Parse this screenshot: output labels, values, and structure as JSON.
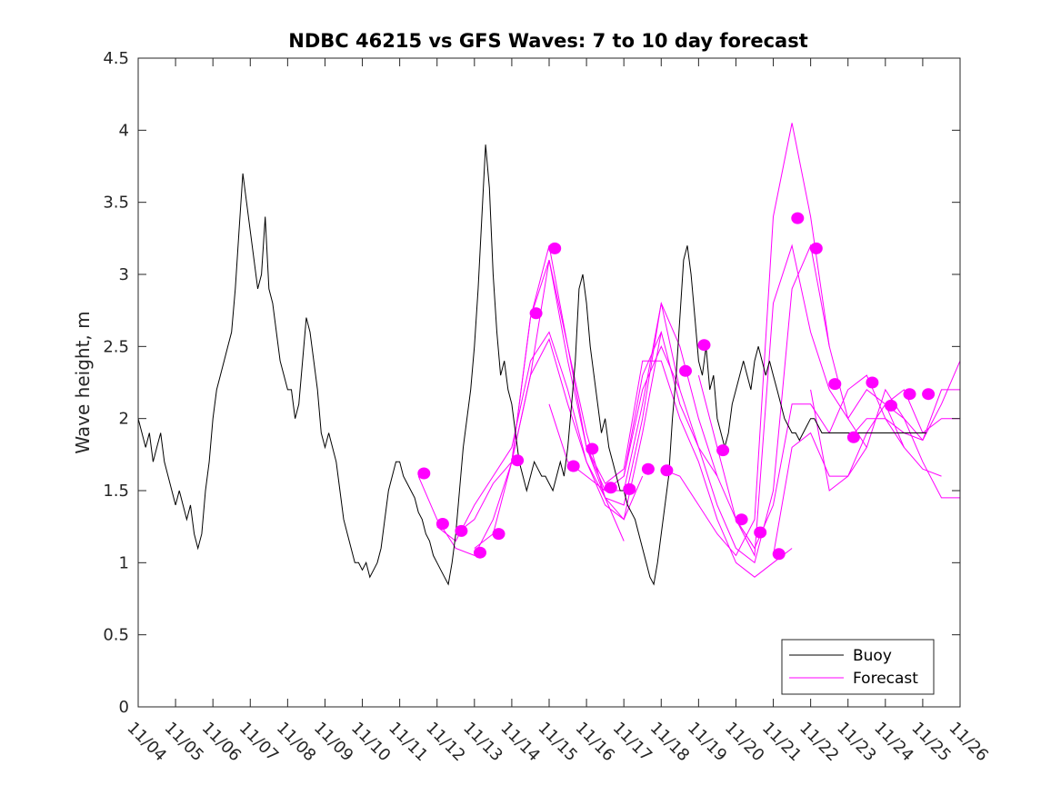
{
  "chart_data": {
    "type": "line",
    "title": "NDBC 46215 vs GFS Waves: 7 to 10 day forecast",
    "xlabel": "",
    "ylabel": "Wave height, m",
    "xlim": [
      0,
      22
    ],
    "ylim": [
      0,
      4.5
    ],
    "grid": false,
    "legend_position": "bottom-right",
    "x_tick_labels": [
      "11/04",
      "11/05",
      "11/06",
      "11/07",
      "11/08",
      "11/09",
      "11/10",
      "11/11",
      "11/12",
      "11/13",
      "11/14",
      "11/15",
      "11/16",
      "11/17",
      "11/18",
      "11/19",
      "11/20",
      "11/21",
      "11/22",
      "11/23",
      "11/24",
      "11/25",
      "11/26"
    ],
    "y_ticks": [
      0,
      0.5,
      1,
      1.5,
      2,
      2.5,
      3,
      3.5,
      4,
      4.5
    ],
    "y_tick_labels": [
      "0",
      "0.5",
      "1",
      "1.5",
      "2",
      "2.5",
      "3",
      "3.5",
      "4",
      "4.5"
    ],
    "legend": [
      "Buoy",
      "Forecast"
    ],
    "colors": {
      "buoy": "#000000",
      "forecast": "#ff00ff"
    },
    "buoy": {
      "name": "Buoy",
      "x": [
        0,
        0.1,
        0.2,
        0.3,
        0.4,
        0.5,
        0.6,
        0.7,
        0.8,
        0.9,
        1.0,
        1.1,
        1.2,
        1.3,
        1.4,
        1.5,
        1.6,
        1.7,
        1.8,
        1.9,
        2.0,
        2.1,
        2.2,
        2.3,
        2.4,
        2.5,
        2.6,
        2.7,
        2.8,
        2.9,
        3.0,
        3.1,
        3.2,
        3.3,
        3.4,
        3.5,
        3.6,
        3.7,
        3.8,
        3.9,
        4.0,
        4.1,
        4.2,
        4.3,
        4.4,
        4.5,
        4.6,
        4.7,
        4.8,
        4.9,
        5.0,
        5.1,
        5.2,
        5.3,
        5.4,
        5.5,
        5.6,
        5.7,
        5.8,
        5.9,
        6.0,
        6.1,
        6.2,
        6.3,
        6.4,
        6.5,
        6.6,
        6.7,
        6.8,
        6.9,
        7.0,
        7.1,
        7.2,
        7.3,
        7.4,
        7.5,
        7.6,
        7.7,
        7.8,
        7.9,
        8.0,
        8.1,
        8.2,
        8.3,
        8.4,
        8.5,
        8.6,
        8.7,
        8.8,
        8.9,
        9.0,
        9.1,
        9.2,
        9.3,
        9.4,
        9.5,
        9.6,
        9.7,
        9.8,
        9.9,
        10.0,
        10.1,
        10.2,
        10.3,
        10.4,
        10.5,
        10.6,
        10.7,
        10.8,
        10.9,
        11.0,
        11.1,
        11.2,
        11.3,
        11.4,
        11.5,
        11.6,
        11.7,
        11.8,
        11.9,
        12.0,
        12.1,
        12.2,
        12.3,
        12.4,
        12.5,
        12.6,
        12.7,
        12.8,
        12.9,
        13.0,
        13.1,
        13.2,
        13.3,
        13.4,
        13.5,
        13.6,
        13.7,
        13.8,
        13.9,
        14.0,
        14.1,
        14.2,
        14.3,
        14.4,
        14.5,
        14.6,
        14.7,
        14.8,
        14.9,
        15.0,
        15.1,
        15.2,
        15.3,
        15.4,
        15.5,
        15.6,
        15.7,
        15.8,
        15.9,
        16.0,
        16.1,
        16.2,
        16.3,
        16.4,
        16.5,
        16.6,
        16.7,
        16.8,
        16.9,
        17.0,
        17.1,
        17.2,
        17.3,
        17.4,
        17.5,
        17.6,
        17.7,
        17.8,
        17.9,
        18.0,
        18.1,
        18.2,
        18.3,
        18.4,
        18.5,
        18.6,
        18.7,
        18.8,
        18.9,
        19.0,
        19.1,
        19.2,
        19.3,
        19.4,
        19.5,
        19.6,
        19.7,
        19.8,
        19.9,
        20.0,
        20.1,
        20.2,
        20.3,
        20.4,
        20.5,
        20.6,
        20.7,
        20.8,
        20.9,
        21.0,
        21.1
      ],
      "y": [
        2.0,
        1.9,
        1.8,
        1.9,
        1.7,
        1.8,
        1.9,
        1.7,
        1.6,
        1.5,
        1.4,
        1.5,
        1.4,
        1.3,
        1.4,
        1.2,
        1.1,
        1.2,
        1.5,
        1.7,
        2.0,
        2.2,
        2.3,
        2.4,
        2.5,
        2.6,
        2.9,
        3.3,
        3.7,
        3.5,
        3.3,
        3.1,
        2.9,
        3.0,
        3.4,
        2.9,
        2.8,
        2.6,
        2.4,
        2.3,
        2.2,
        2.2,
        2.0,
        2.1,
        2.4,
        2.7,
        2.6,
        2.4,
        2.2,
        1.9,
        1.8,
        1.9,
        1.8,
        1.7,
        1.5,
        1.3,
        1.2,
        1.1,
        1.0,
        1.0,
        0.95,
        1.0,
        0.9,
        0.95,
        1.0,
        1.1,
        1.3,
        1.5,
        1.6,
        1.7,
        1.7,
        1.6,
        1.55,
        1.5,
        1.45,
        1.35,
        1.3,
        1.2,
        1.15,
        1.05,
        1.0,
        0.95,
        0.9,
        0.85,
        1.0,
        1.2,
        1.5,
        1.8,
        2.0,
        2.2,
        2.5,
        2.9,
        3.4,
        3.9,
        3.6,
        3.0,
        2.6,
        2.3,
        2.4,
        2.2,
        2.1,
        1.9,
        1.7,
        1.6,
        1.5,
        1.6,
        1.7,
        1.65,
        1.6,
        1.6,
        1.55,
        1.5,
        1.6,
        1.7,
        1.6,
        1.8,
        2.1,
        2.4,
        2.9,
        3.0,
        2.8,
        2.5,
        2.3,
        2.1,
        1.9,
        2.0,
        1.8,
        1.7,
        1.6,
        1.5,
        1.5,
        1.4,
        1.35,
        1.3,
        1.2,
        1.1,
        1.0,
        0.9,
        0.85,
        1.0,
        1.2,
        1.4,
        1.6,
        2.0,
        2.3,
        2.7,
        3.1,
        3.2,
        3.0,
        2.7,
        2.4,
        2.3,
        2.5,
        2.2,
        2.3,
        2.0,
        1.9,
        1.8,
        1.9,
        2.1,
        2.2,
        2.3,
        2.4,
        2.3,
        2.2,
        2.4,
        2.5,
        2.4,
        2.3,
        2.4,
        2.3,
        2.2,
        2.1,
        2.0,
        1.95,
        1.9,
        1.9,
        1.85,
        1.9,
        1.95,
        2.0,
        2.0,
        1.95,
        1.9,
        1.9,
        1.9,
        1.9,
        1.9,
        1.9,
        1.9,
        1.9,
        1.9,
        1.9,
        1.9,
        1.9,
        1.9,
        1.9,
        1.9,
        1.9,
        1.9,
        1.9,
        1.9,
        1.9,
        1.9,
        1.9,
        1.9,
        1.9,
        1.9,
        1.9,
        1.9,
        1.9,
        1.9
      ]
    },
    "forecast_series": [
      {
        "name": "Forecast",
        "x": [
          7.5,
          8.0,
          8.5,
          9.0,
          9.5,
          10.0,
          10.5,
          11.0,
          11.5,
          12.0,
          12.5,
          13.0
        ],
        "y": [
          1.6,
          1.3,
          1.1,
          1.05,
          1.3,
          1.7,
          2.3,
          2.55,
          2.1,
          1.7,
          1.45,
          1.15
        ]
      },
      {
        "name": "Forecast",
        "x": [
          8.0,
          8.5,
          9.0,
          9.5,
          10.0,
          10.5,
          11.0,
          11.5,
          12.0,
          12.5,
          13.0,
          13.5
        ],
        "y": [
          1.25,
          1.15,
          1.4,
          1.6,
          1.8,
          2.4,
          2.6,
          2.2,
          1.7,
          1.4,
          1.3,
          1.6
        ]
      },
      {
        "name": "Forecast",
        "x": [
          8.5,
          9.0,
          9.5,
          10.0,
          10.5,
          11.0,
          11.5,
          12.0,
          12.5,
          13.0,
          13.5,
          14.0
        ],
        "y": [
          1.2,
          1.3,
          1.55,
          1.7,
          2.3,
          3.1,
          2.5,
          1.9,
          1.45,
          1.3,
          1.9,
          2.6
        ]
      },
      {
        "name": "Forecast",
        "x": [
          9.0,
          9.5,
          10.0,
          10.5,
          11.0,
          11.5,
          12.0,
          12.5,
          13.0,
          13.5,
          14.0,
          14.5
        ],
        "y": [
          1.1,
          1.2,
          1.7,
          2.7,
          3.2,
          2.5,
          1.8,
          1.45,
          1.4,
          2.0,
          2.8,
          2.2
        ]
      },
      {
        "name": "Forecast",
        "x": [
          10.0,
          10.5,
          11.0,
          11.5,
          12.0,
          12.5,
          13.0,
          13.5,
          14.0,
          14.5,
          15.0,
          15.5
        ],
        "y": [
          1.7,
          2.7,
          3.1,
          2.4,
          1.8,
          1.5,
          1.5,
          2.1,
          2.8,
          2.5,
          2.0,
          1.6
        ]
      },
      {
        "name": "Forecast",
        "x": [
          11.0,
          11.5,
          12.0,
          12.5,
          13.0,
          13.5,
          14.0,
          14.5,
          15.0,
          15.5,
          16.0,
          16.5
        ],
        "y": [
          2.1,
          1.7,
          1.6,
          1.5,
          1.6,
          2.3,
          2.6,
          2.1,
          1.8,
          1.6,
          1.3,
          1.1
        ]
      },
      {
        "name": "Forecast",
        "x": [
          12.0,
          12.5,
          13.0,
          13.5,
          14.0,
          14.5,
          15.0,
          15.5,
          16.0,
          16.5,
          17.0,
          17.5
        ],
        "y": [
          1.8,
          1.55,
          1.65,
          2.4,
          2.4,
          2.0,
          1.7,
          1.3,
          1.0,
          0.9,
          1.0,
          1.1
        ]
      },
      {
        "name": "Forecast",
        "x": [
          13.0,
          13.5,
          14.0,
          14.5,
          15.0,
          15.5,
          16.0,
          16.5,
          17.0,
          17.5,
          18.0,
          18.5
        ],
        "y": [
          1.6,
          2.2,
          2.5,
          2.2,
          1.8,
          1.4,
          1.1,
          1.0,
          1.5,
          2.9,
          3.2,
          2.5
        ]
      },
      {
        "name": "Forecast",
        "x": [
          14.0,
          14.5,
          15.0,
          15.5,
          16.0,
          16.5,
          17.0,
          17.5,
          18.0,
          18.5,
          19.0,
          19.5
        ],
        "y": [
          1.65,
          1.6,
          1.4,
          1.2,
          1.05,
          1.3,
          3.4,
          4.05,
          3.4,
          2.5,
          2.0,
          1.8
        ]
      },
      {
        "name": "Forecast",
        "x": [
          15.0,
          15.5,
          16.0,
          16.5,
          17.0,
          17.5,
          18.0,
          18.5,
          19.0,
          19.5,
          20.0,
          20.5
        ],
        "y": [
          2.3,
          1.8,
          1.3,
          1.05,
          2.8,
          3.2,
          2.6,
          2.2,
          2.0,
          2.2,
          2.1,
          1.8
        ]
      },
      {
        "name": "Forecast",
        "x": [
          16.0,
          16.5,
          17.0,
          17.5,
          18.0,
          18.5,
          19.0,
          19.5,
          20.0,
          20.5,
          21.0,
          21.5
        ],
        "y": [
          1.3,
          1.1,
          1.4,
          2.1,
          2.1,
          1.9,
          2.2,
          2.3,
          2.0,
          1.8,
          1.65,
          1.6
        ]
      },
      {
        "name": "Forecast",
        "x": [
          17.0,
          17.5,
          18.0,
          18.5,
          19.0,
          19.5,
          20.0,
          20.5,
          21.0,
          21.5,
          22.0
        ],
        "y": [
          1.05,
          1.8,
          1.9,
          1.6,
          1.6,
          1.9,
          2.1,
          2.0,
          1.85,
          2.1,
          2.4
        ]
      },
      {
        "name": "Forecast",
        "x": [
          18.0,
          18.5,
          19.0,
          19.5,
          20.0,
          20.5,
          21.0,
          21.5,
          22.0
        ],
        "y": [
          2.2,
          1.5,
          1.6,
          1.8,
          2.2,
          2.0,
          1.7,
          1.45,
          1.45
        ]
      },
      {
        "name": "Forecast",
        "x": [
          19.0,
          19.5,
          20.0,
          20.5,
          21.0,
          21.5,
          22.0
        ],
        "y": [
          1.85,
          2.0,
          2.0,
          1.9,
          1.85,
          2.2,
          2.2
        ]
      },
      {
        "name": "Forecast",
        "x": [
          20.0,
          20.5,
          21.0,
          21.5,
          22.0
        ],
        "y": [
          2.1,
          2.2,
          1.9,
          2.0,
          2.0
        ]
      }
    ],
    "forecast_markers": {
      "x": [
        7.65,
        8.15,
        8.65,
        9.15,
        9.65,
        10.15,
        10.65,
        11.15,
        11.65,
        12.15,
        12.65,
        13.15,
        13.65,
        14.15,
        14.65,
        15.15,
        15.65,
        16.15,
        16.65,
        17.15,
        17.65,
        18.15,
        18.65,
        19.15,
        19.65,
        20.15,
        20.65,
        21.15
      ],
      "y": [
        1.62,
        1.27,
        1.22,
        1.07,
        1.2,
        1.71,
        2.73,
        3.18,
        1.67,
        1.79,
        1.52,
        1.51,
        1.65,
        1.64,
        2.33,
        2.51,
        1.78,
        1.3,
        1.21,
        1.06,
        3.39,
        3.18,
        2.24,
        1.87,
        2.25,
        2.09,
        2.17,
        2.17
      ]
    }
  }
}
